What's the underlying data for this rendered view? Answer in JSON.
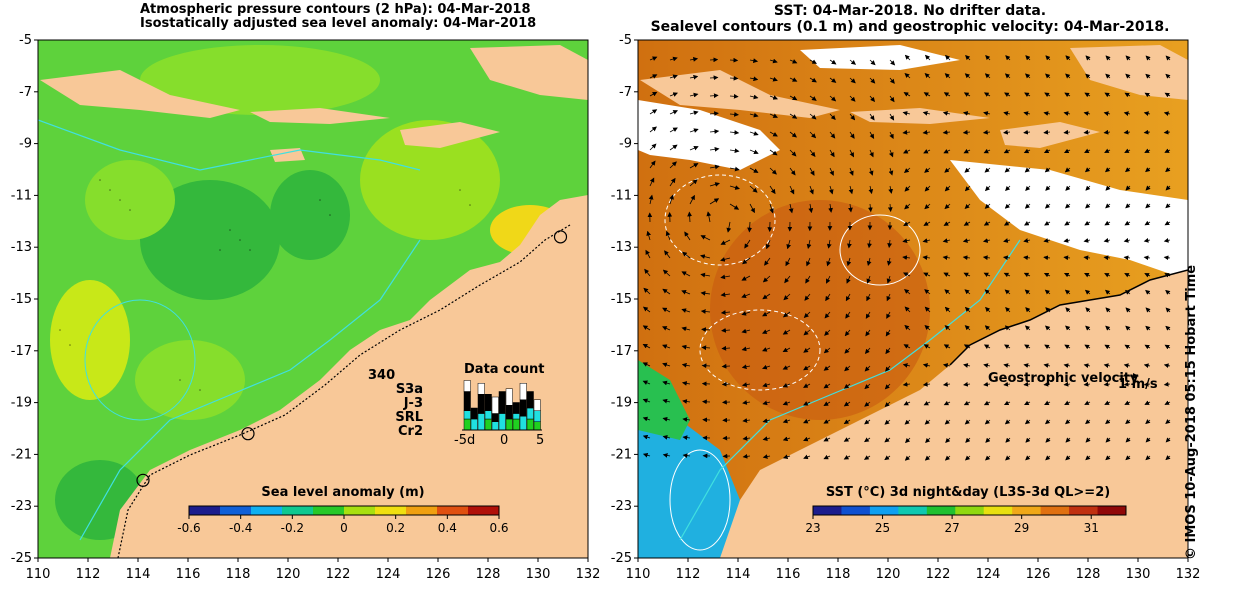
{
  "left_panel": {
    "title_line1": "Atmospheric pressure contours (2 hPa): 04-Mar-2018",
    "title_line2": "Isostatically adjusted sea level anomaly: 04-Mar-2018",
    "lat_ticks": [
      "-5",
      "-7",
      "-9",
      "-11",
      "-13",
      "-15",
      "-17",
      "-19",
      "-21",
      "-23",
      "-25"
    ],
    "lon_ticks": [
      "110",
      "112",
      "114",
      "116",
      "118",
      "120",
      "122",
      "124",
      "126",
      "128",
      "130",
      "132"
    ],
    "colorbar": {
      "label": "Sea level anomaly (m)",
      "ticks": [
        "-0.6",
        "-0.4",
        "-0.2",
        "0",
        "0.2",
        "0.4",
        "0.6"
      ],
      "range": [
        -0.6,
        0.6
      ],
      "colors": [
        "#1c1c8c",
        "#1060d8",
        "#10b0f0",
        "#10c890",
        "#28c828",
        "#a8e010",
        "#f0e010",
        "#f0a010",
        "#e05010",
        "#b01008"
      ]
    },
    "data_count": {
      "title": "Data count",
      "max_label": "340",
      "missions": [
        {
          "name": "S3a",
          "color": "#ffffff"
        },
        {
          "name": "J-3",
          "color": "#000000"
        },
        {
          "name": "SRL",
          "color": "#20e0e0"
        },
        {
          "name": "Cr2",
          "color": "#20d020"
        }
      ],
      "x_ticks": [
        "-5d",
        "0",
        "5"
      ],
      "day_index": [
        -5,
        -4,
        -3,
        -2,
        -1,
        0,
        1,
        2,
        3,
        4,
        5
      ],
      "stacks": [
        [
          0.2,
          0.35,
          0.15,
          0.2
        ],
        [
          0.0,
          0.2,
          0.2,
          0.0
        ],
        [
          0.2,
          0.35,
          0.3,
          0.0
        ],
        [
          0.0,
          0.3,
          0.15,
          0.2
        ],
        [
          0.3,
          0.15,
          0.15,
          0.0
        ],
        [
          0.0,
          0.4,
          0.3,
          0.0
        ],
        [
          0.3,
          0.25,
          0.0,
          0.2
        ],
        [
          0.0,
          0.2,
          0.1,
          0.2
        ],
        [
          0.3,
          0.3,
          0.25,
          0.0
        ],
        [
          0.0,
          0.3,
          0.2,
          0.2
        ],
        [
          0.2,
          0.0,
          0.2,
          0.15
        ]
      ]
    },
    "tide_gauges": [
      {
        "lon": 114.2,
        "lat": -22.0
      },
      {
        "lon": 118.4,
        "lat": -20.2
      },
      {
        "lon": 130.9,
        "lat": -12.6
      }
    ]
  },
  "right_panel": {
    "title_line1": "SST: 04-Mar-2018. No drifter data.",
    "title_line2": "Sealevel contours (0.1 m) and geostrophic velocity: 04-Mar-2018.",
    "lat_ticks": [
      "-5",
      "-7",
      "-9",
      "-11",
      "-13",
      "-15",
      "-17",
      "-19",
      "-21",
      "-23",
      "-25"
    ],
    "lon_ticks": [
      "110",
      "112",
      "114",
      "116",
      "118",
      "120",
      "122",
      "124",
      "126",
      "128",
      "130",
      "132"
    ],
    "velocity_legend": {
      "label": "Geostrophic velocity",
      "scale": "1 m/s"
    },
    "colorbar": {
      "label": "SST (°C) 3d night&day (L3S-3d QL>=2)",
      "ticks": [
        "23",
        "25",
        "27",
        "29",
        "31"
      ],
      "range": [
        23,
        32
      ],
      "colors": [
        "#1c1c8c",
        "#1050d0",
        "#10a0f0",
        "#10c8b0",
        "#20c030",
        "#90d810",
        "#e8e010",
        "#f0a818",
        "#e07010",
        "#c03010",
        "#900808"
      ]
    }
  },
  "credit": "© IMOS 10-Aug-2018 05:15 Hobart Time",
  "colors": {
    "land": "#f8c898",
    "sla_sea": "#5ed23c",
    "sst_sea": "#e8961a",
    "no_data": "#ffffff"
  }
}
